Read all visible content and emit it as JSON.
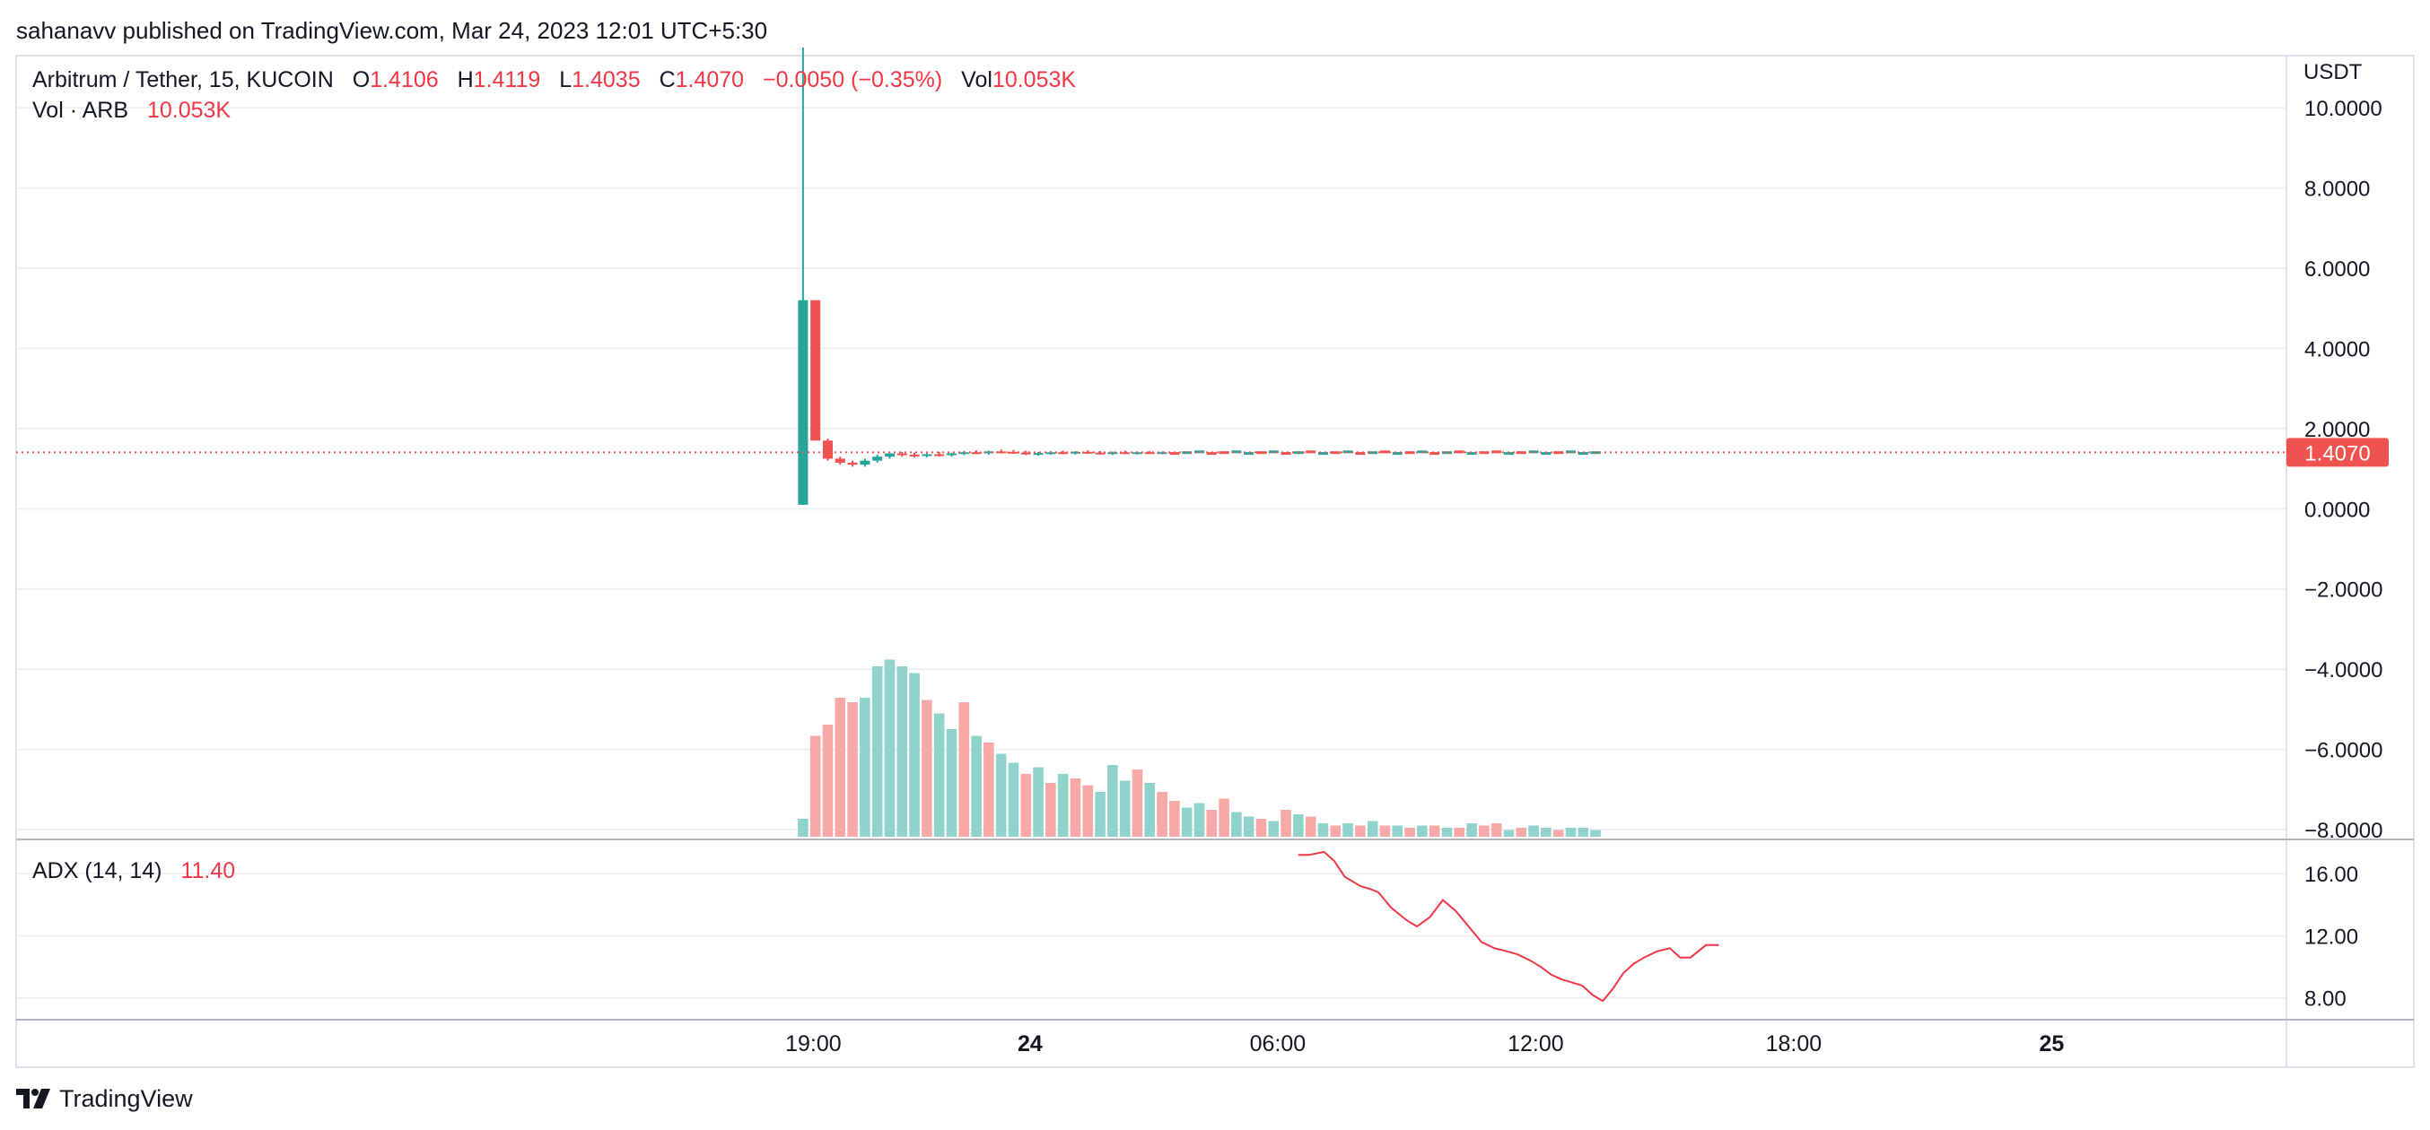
{
  "publish_line": "sahanavv published on TradingView.com, Mar 24, 2023 12:01 UTC+5:30",
  "footer": {
    "brand": "TradingView",
    "logo_icon": "tradingview-logo-icon"
  },
  "legend": {
    "symbol": "Arbitrum / Tether, 15, KUCOIN",
    "o_label": "O",
    "o_value": "1.4106",
    "h_label": "H",
    "h_value": "1.4119",
    "l_label": "L",
    "l_value": "1.4035",
    "c_label": "C",
    "c_value": "1.4070",
    "change": "−0.0050 (−0.35%)",
    "vol_label": "Vol",
    "vol_value": "10.053K",
    "vol_line_label": "Vol · ARB",
    "vol_line_value": "10.053K",
    "adx_label": "ADX (14, 14)",
    "adx_value": "11.40"
  },
  "colors": {
    "up": "#26a69a",
    "down": "#ef5350",
    "vol_up": "#90d3cb",
    "vol_down": "#f7a9a7",
    "adx": "#f23645",
    "price_tag": "#ef5350",
    "grid": "#eef0f3"
  },
  "chart_data": [
    {
      "type": "candlestick",
      "title": "Arbitrum / Tether, 15, KUCOIN",
      "y_axis_unit": "USDT",
      "y_ticks": [
        "10.0000",
        "8.0000",
        "6.0000",
        "4.0000",
        "2.0000",
        "0.0000",
        "−2.0000",
        "−4.0000",
        "−6.0000",
        "−8.0000"
      ],
      "y_tick_values": [
        10,
        8,
        6,
        4,
        2,
        0,
        -2,
        -4,
        -6,
        -8
      ],
      "ylim": [
        -8.2,
        11.3
      ],
      "last_price_label": "1.4070",
      "last_price": 1.407,
      "x_ticks": [
        "19:00",
        "24",
        "06:00",
        "12:00",
        "18:00",
        "25"
      ],
      "x_tick_index": [
        0.4,
        8.8,
        18.4,
        28.4,
        38.4,
        48.4
      ],
      "xlim": [
        -30.5,
        57.5
      ],
      "grid": true,
      "candles": [
        {
          "o": 0.1,
          "h": 11.5,
          "l": 0.1,
          "c": 5.2
        },
        {
          "o": 5.2,
          "h": 5.2,
          "l": 1.7,
          "c": 1.7
        },
        {
          "o": 1.7,
          "h": 1.75,
          "l": 1.2,
          "c": 1.25
        },
        {
          "o": 1.25,
          "h": 1.3,
          "l": 1.1,
          "c": 1.15
        },
        {
          "o": 1.15,
          "h": 1.2,
          "l": 1.05,
          "c": 1.1
        },
        {
          "o": 1.1,
          "h": 1.25,
          "l": 1.05,
          "c": 1.2
        },
        {
          "o": 1.2,
          "h": 1.35,
          "l": 1.15,
          "c": 1.3
        },
        {
          "o": 1.3,
          "h": 1.4,
          "l": 1.25,
          "c": 1.38
        },
        {
          "o": 1.38,
          "h": 1.42,
          "l": 1.3,
          "c": 1.35
        },
        {
          "o": 1.35,
          "h": 1.4,
          "l": 1.28,
          "c": 1.32
        },
        {
          "o": 1.32,
          "h": 1.38,
          "l": 1.28,
          "c": 1.36
        },
        {
          "o": 1.36,
          "h": 1.42,
          "l": 1.3,
          "c": 1.34
        },
        {
          "o": 1.34,
          "h": 1.4,
          "l": 1.3,
          "c": 1.38
        },
        {
          "o": 1.38,
          "h": 1.44,
          "l": 1.34,
          "c": 1.41
        },
        {
          "o": 1.41,
          "h": 1.46,
          "l": 1.36,
          "c": 1.39
        },
        {
          "o": 1.39,
          "h": 1.45,
          "l": 1.35,
          "c": 1.43
        },
        {
          "o": 1.43,
          "h": 1.48,
          "l": 1.38,
          "c": 1.42
        },
        {
          "o": 1.42,
          "h": 1.47,
          "l": 1.37,
          "c": 1.4
        },
        {
          "o": 1.4,
          "h": 1.45,
          "l": 1.34,
          "c": 1.37
        },
        {
          "o": 1.37,
          "h": 1.42,
          "l": 1.32,
          "c": 1.39
        },
        {
          "o": 1.39,
          "h": 1.44,
          "l": 1.35,
          "c": 1.41
        },
        {
          "o": 1.41,
          "h": 1.45,
          "l": 1.36,
          "c": 1.4
        },
        {
          "o": 1.4,
          "h": 1.44,
          "l": 1.35,
          "c": 1.42
        },
        {
          "o": 1.42,
          "h": 1.46,
          "l": 1.37,
          "c": 1.4
        },
        {
          "o": 1.4,
          "h": 1.44,
          "l": 1.35,
          "c": 1.38
        },
        {
          "o": 1.38,
          "h": 1.43,
          "l": 1.34,
          "c": 1.41
        },
        {
          "o": 1.41,
          "h": 1.45,
          "l": 1.36,
          "c": 1.39
        },
        {
          "o": 1.39,
          "h": 1.43,
          "l": 1.35,
          "c": 1.41
        },
        {
          "o": 1.41,
          "h": 1.44,
          "l": 1.37,
          "c": 1.4
        },
        {
          "o": 1.4,
          "h": 1.43,
          "l": 1.36,
          "c": 1.41
        }
      ],
      "volume_series": {
        "name": "Vol · ARB",
        "values": [
          0.08,
          0.45,
          0.5,
          0.62,
          0.6,
          0.62,
          0.76,
          0.79,
          0.76,
          0.73,
          0.61,
          0.55,
          0.48,
          0.6,
          0.45,
          0.42,
          0.37,
          0.33,
          0.28,
          0.31,
          0.24,
          0.28,
          0.26,
          0.23,
          0.2,
          0.32,
          0.25,
          0.3,
          0.24,
          0.2,
          0.16,
          0.13,
          0.15,
          0.12,
          0.17,
          0.11,
          0.09,
          0.08,
          0.07,
          0.12,
          0.1,
          0.09,
          0.06,
          0.05,
          0.06,
          0.05,
          0.07,
          0.05,
          0.05,
          0.04,
          0.05,
          0.05,
          0.04,
          0.04,
          0.06,
          0.05,
          0.06,
          0.03,
          0.04,
          0.05,
          0.04,
          0.03,
          0.04,
          0.04,
          0.03
        ],
        "up": [
          true,
          false,
          false,
          false,
          false,
          true,
          true,
          true,
          true,
          true,
          false,
          true,
          true,
          false,
          true,
          false,
          true,
          true,
          false,
          true,
          false,
          true,
          false,
          false,
          true,
          true,
          true,
          false,
          true,
          false,
          false,
          true,
          true,
          false,
          false,
          true,
          true,
          false,
          true,
          false,
          true,
          false,
          true,
          false,
          true,
          false,
          true,
          false,
          true,
          false,
          true,
          false,
          true,
          false,
          true,
          false,
          false,
          true,
          false,
          true,
          true,
          false,
          true,
          true,
          true
        ]
      }
    },
    {
      "type": "line",
      "name": "ADX (14, 14)",
      "y_ticks": [
        "16.00",
        "12.00",
        "8.00"
      ],
      "y_tick_values": [
        16,
        12,
        8
      ],
      "ylim": [
        6.6,
        18.2
      ],
      "x_index": [
        19.2,
        19.6,
        20.2,
        20.6,
        21.0,
        21.6,
        22.0,
        22.3,
        22.8,
        23.4,
        23.8,
        24.3,
        24.8,
        25.3,
        25.8,
        26.3,
        26.8,
        27.3,
        27.7,
        28.2,
        28.6,
        29.0,
        29.4,
        29.8,
        30.2,
        30.6,
        31.0,
        31.4,
        31.8,
        32.2,
        32.6,
        33.1,
        33.6,
        34.0,
        34.4,
        34.7,
        35.0,
        35.5
      ],
      "values": [
        17.2,
        17.2,
        17.4,
        16.8,
        15.8,
        15.2,
        15.0,
        14.8,
        13.8,
        13.0,
        12.6,
        13.2,
        14.3,
        13.6,
        12.6,
        11.6,
        11.2,
        11.0,
        10.8,
        10.4,
        10.0,
        9.5,
        9.2,
        9.0,
        8.8,
        8.2,
        7.8,
        8.6,
        9.6,
        10.2,
        10.6,
        11.0,
        11.2,
        10.6,
        10.6,
        11.0,
        11.4,
        11.4
      ]
    }
  ]
}
